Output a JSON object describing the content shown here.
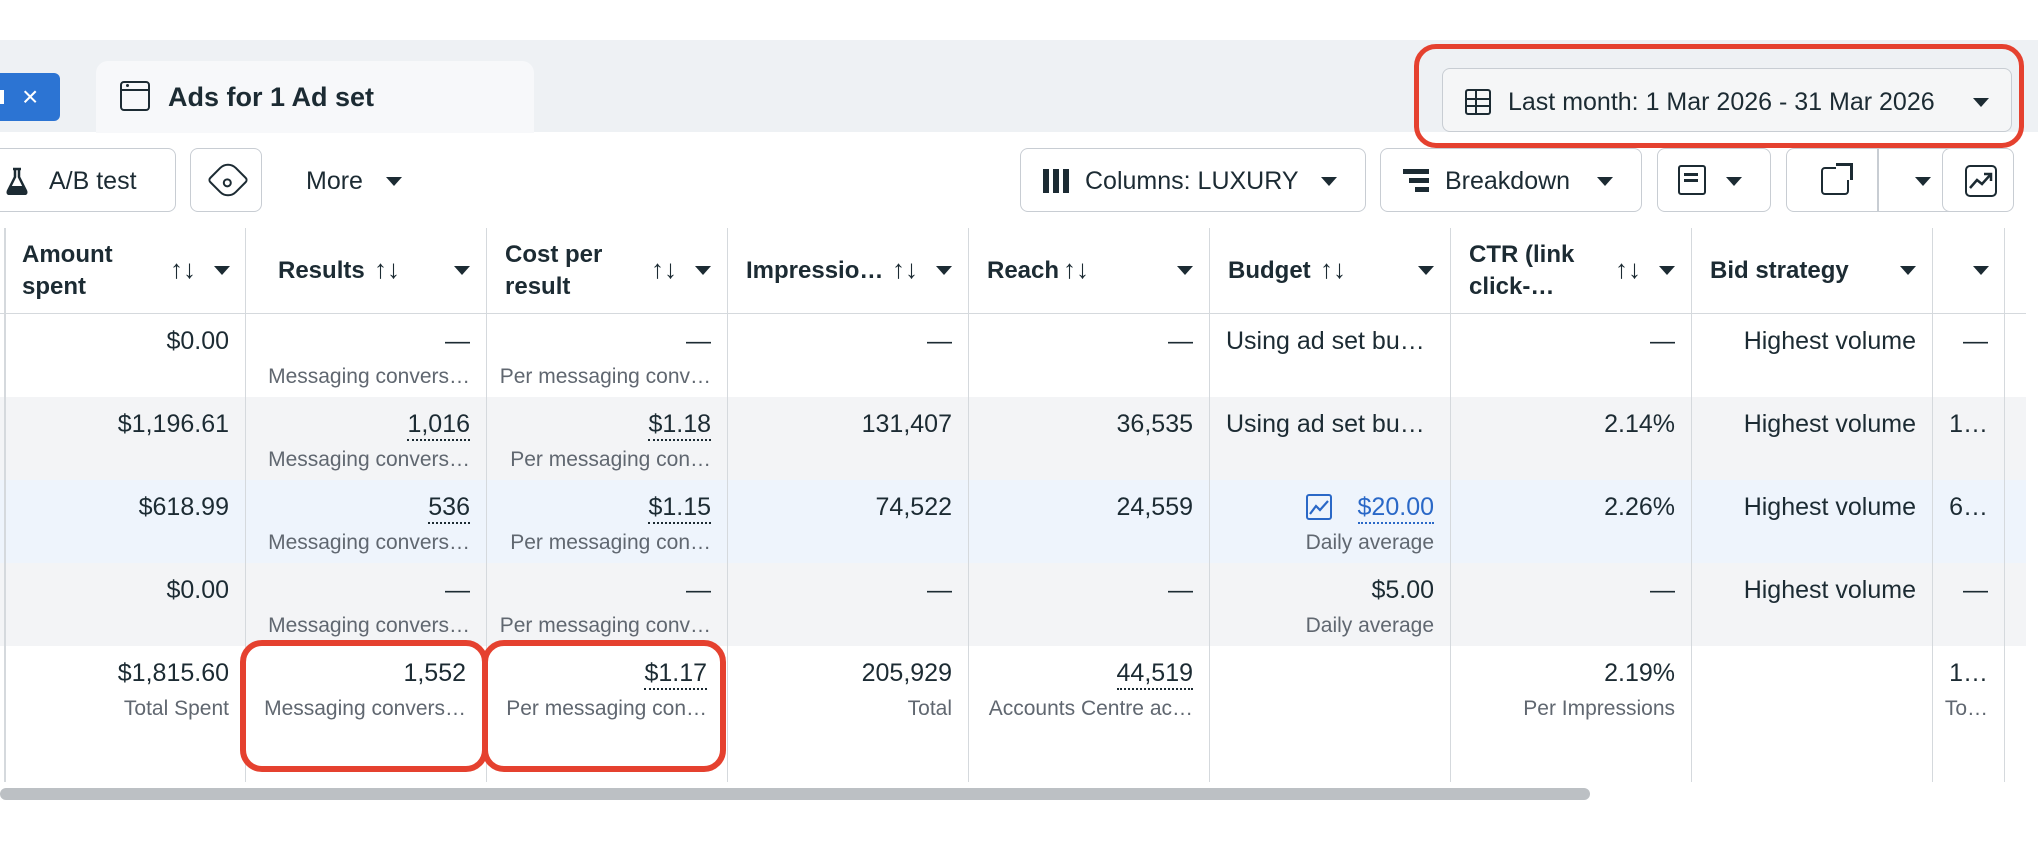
{
  "tabs": {
    "ads_tab_label": "Ads for 1 Ad set",
    "close_symbol": "×"
  },
  "date_range": {
    "label": "Last month: 1 Mar 2026 - 31 Mar 2026"
  },
  "toolbar": {
    "ab_test": "A/B test",
    "more": "More",
    "columns": "Columns: LUXURY",
    "breakdown": "Breakdown"
  },
  "columns": [
    {
      "l1": "Amount",
      "l2": "spent"
    },
    {
      "l1": "Results",
      "l2": ""
    },
    {
      "l1": "Cost per",
      "l2": "result"
    },
    {
      "l1": "Impressio…",
      "l2": ""
    },
    {
      "l1": "Reach",
      "l2": ""
    },
    {
      "l1": "Budget",
      "l2": ""
    },
    {
      "l1": "CTR (link",
      "l2": "click-…"
    },
    {
      "l1": "Bid strategy",
      "l2": ""
    }
  ],
  "sort_symbol": "↑↓",
  "rows": [
    {
      "amount": "$0.00",
      "results": "—",
      "results_sub": "Messaging convers…",
      "cpr": "—",
      "cpr_sub": "Per messaging conv…",
      "impr": "—",
      "reach": "—",
      "budget": "Using ad set bu…",
      "budget_sub": "",
      "ctr": "—",
      "bid": "Highest volume",
      "extra": "—"
    },
    {
      "amount": "$1,196.61",
      "results": "1,016",
      "results_sub": "Messaging convers…",
      "cpr": "$1.18",
      "cpr_sub": "Per messaging con…",
      "impr": "131,407",
      "reach": "36,535",
      "budget": "Using ad set bu…",
      "budget_sub": "",
      "ctr": "2.14%",
      "bid": "Highest volume",
      "extra": "1…"
    },
    {
      "amount": "$618.99",
      "results": "536",
      "results_sub": "Messaging convers…",
      "cpr": "$1.15",
      "cpr_sub": "Per messaging con…",
      "impr": "74,522",
      "reach": "24,559",
      "budget": "$20.00",
      "budget_sub": "Daily average",
      "ctr": "2.26%",
      "bid": "Highest volume",
      "extra": "6…"
    },
    {
      "amount": "$0.00",
      "results": "—",
      "results_sub": "Messaging convers…",
      "cpr": "—",
      "cpr_sub": "Per messaging conv…",
      "impr": "—",
      "reach": "—",
      "budget": "$5.00",
      "budget_sub": "Daily average",
      "ctr": "—",
      "bid": "Highest volume",
      "extra": "—"
    }
  ],
  "totals": {
    "amount": "$1,815.60",
    "amount_sub": "Total Spent",
    "results": "1,552",
    "results_sub": "Messaging convers…",
    "cpr": "$1.17",
    "cpr_sub": "Per messaging con…",
    "impr": "205,929",
    "impr_sub": "Total",
    "reach": "44,519",
    "reach_sub": "Accounts Centre ac…",
    "ctr": "2.19%",
    "ctr_sub": "Per Impressions",
    "extra": "1…",
    "extra_sub": "To…"
  },
  "colors": {
    "accent": "#2c74d3",
    "highlight": "#e5412f"
  }
}
